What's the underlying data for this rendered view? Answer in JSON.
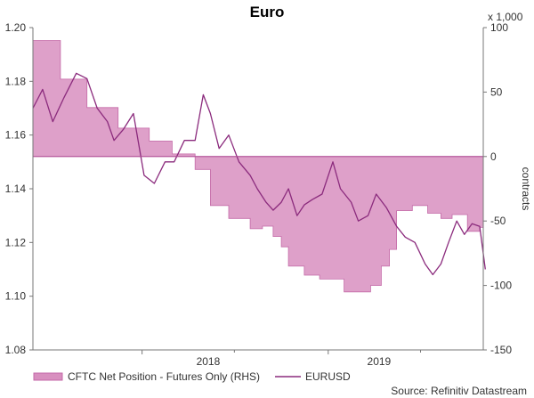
{
  "chart_data": {
    "type": "area",
    "title": "Euro",
    "source": "Source: Refinitiv Datastream",
    "y_left": {
      "ticks": [
        "1.08",
        "1.10",
        "1.12",
        "1.14",
        "1.16",
        "1.18",
        "1.20"
      ],
      "ylim": [
        1.08,
        1.2
      ]
    },
    "y_right": {
      "label": "contracts",
      "multiplier": "x 1,000",
      "ticks": [
        "100",
        "50",
        "0",
        "-50",
        "-100",
        "-150"
      ],
      "ylim": [
        -150,
        100
      ]
    },
    "x_ticks": [
      "2018",
      "2019"
    ],
    "x_range": [
      "2017-06",
      "2019-11"
    ],
    "grid": false,
    "legend_position": "bottom",
    "series": [
      {
        "name": "CFTC Net Position - Futures Only (RHS)",
        "kind": "area",
        "axis": "right",
        "color": "#d88fbf",
        "x": [
          "2017-06-01",
          "2017-07-25",
          "2017-09-15",
          "2017-11-15",
          "2018-01-15",
          "2018-03-01",
          "2018-04-15",
          "2018-05-15",
          "2018-06-20",
          "2018-08-01",
          "2018-08-25",
          "2018-09-15",
          "2018-10-01",
          "2018-10-15",
          "2018-11-15",
          "2018-12-15",
          "2019-02-01",
          "2019-03-01",
          "2019-03-25",
          "2019-04-15",
          "2019-05-01",
          "2019-05-15",
          "2019-06-15",
          "2019-07-15",
          "2019-08-10",
          "2019-09-01",
          "2019-10-01",
          "2019-10-25"
        ],
        "y": [
          90,
          60,
          38,
          22,
          12,
          2,
          -10,
          -38,
          -48,
          -56,
          -54,
          -62,
          -70,
          -85,
          -92,
          -95,
          -105,
          -105,
          -100,
          -85,
          -72,
          -42,
          -38,
          -44,
          -48,
          -45,
          -58,
          -55
        ]
      },
      {
        "name": "EURUSD",
        "kind": "line",
        "axis": "left",
        "color": "#8b2b7d",
        "x": [
          "2017-06-01",
          "2017-06-20",
          "2017-07-10",
          "2017-08-01",
          "2017-08-25",
          "2017-09-15",
          "2017-10-05",
          "2017-10-25",
          "2017-11-07",
          "2017-11-25",
          "2017-12-15",
          "2018-01-05",
          "2018-01-25",
          "2018-02-15",
          "2018-03-05",
          "2018-03-25",
          "2018-04-15",
          "2018-05-01",
          "2018-05-15",
          "2018-06-01",
          "2018-06-20",
          "2018-07-10",
          "2018-08-01",
          "2018-08-15",
          "2018-09-01",
          "2018-09-15",
          "2018-10-01",
          "2018-10-15",
          "2018-11-01",
          "2018-11-15",
          "2018-12-01",
          "2018-12-20",
          "2019-01-10",
          "2019-01-25",
          "2019-02-15",
          "2019-03-01",
          "2019-03-20",
          "2019-04-05",
          "2019-04-25",
          "2019-05-15",
          "2019-06-01",
          "2019-06-20",
          "2019-07-10",
          "2019-07-25",
          "2019-08-10",
          "2019-08-25",
          "2019-09-10",
          "2019-09-25",
          "2019-10-10",
          "2019-10-25",
          "2019-11-05"
        ],
        "y": [
          1.17,
          1.177,
          1.165,
          1.174,
          1.183,
          1.181,
          1.17,
          1.165,
          1.158,
          1.162,
          1.168,
          1.145,
          1.142,
          1.15,
          1.15,
          1.158,
          1.158,
          1.175,
          1.168,
          1.155,
          1.16,
          1.15,
          1.145,
          1.14,
          1.135,
          1.132,
          1.135,
          1.14,
          1.13,
          1.134,
          1.136,
          1.138,
          1.15,
          1.14,
          1.135,
          1.128,
          1.13,
          1.138,
          1.133,
          1.126,
          1.122,
          1.12,
          1.112,
          1.108,
          1.112,
          1.12,
          1.128,
          1.123,
          1.127,
          1.126,
          1.11
        ]
      }
    ]
  }
}
